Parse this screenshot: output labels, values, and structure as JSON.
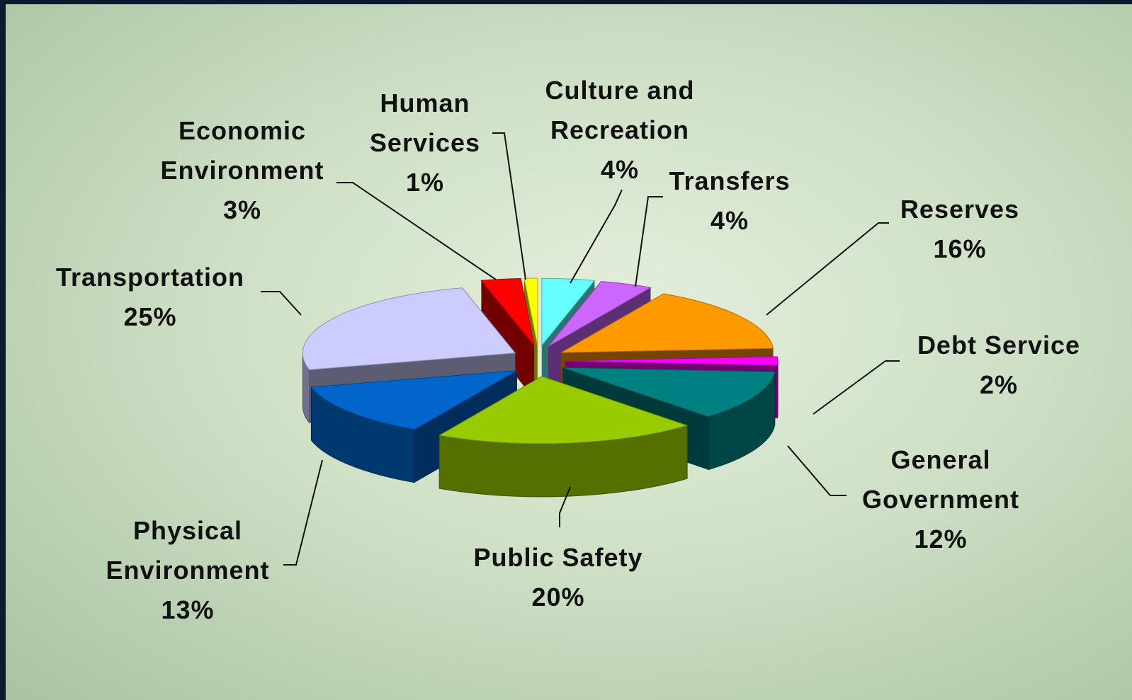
{
  "chart_data": {
    "type": "pie",
    "categories": [
      "Culture and Recreation",
      "Transfers",
      "Reserves",
      "Debt Service",
      "General Government",
      "Public Safety",
      "Physical Environment",
      "Transportation",
      "Economic Environment",
      "Human Services"
    ],
    "values": [
      4,
      4,
      16,
      2,
      12,
      20,
      13,
      25,
      3,
      1
    ],
    "value_labels": [
      "4%",
      "4%",
      "16%",
      "2%",
      "12%",
      "20%",
      "13%",
      "25%",
      "3%",
      "1%"
    ],
    "colors": [
      "#66ffff",
      "#cc66ff",
      "#ff9900",
      "#ff00ff",
      "#008080",
      "#99cc00",
      "#0066cc",
      "#ccccff",
      "#ff0000",
      "#ffff00"
    ]
  }
}
